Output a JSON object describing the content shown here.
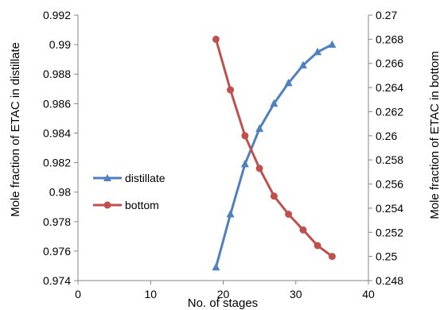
{
  "chart_data": {
    "type": "line",
    "xlabel": "No. of stages",
    "ylabel_left": "Mole fraction of ETAC in distillate",
    "ylabel_right": "Mole fraction of ETAC in bottom",
    "xlim": [
      0,
      40
    ],
    "ylim_left": [
      0.974,
      0.992
    ],
    "ylim_right": [
      0.248,
      0.27
    ],
    "x_ticks": [
      "0",
      "10",
      "20",
      "30",
      "40"
    ],
    "y_left_ticks": [
      "0.974",
      "0.976",
      "0.978",
      "0.98",
      "0.982",
      "0.984",
      "0.986",
      "0.988",
      "0.99",
      "0.992"
    ],
    "y_right_ticks": [
      "0.248",
      "0.25",
      "0.252",
      "0.254",
      "0.256",
      "0.258",
      "0.26",
      "0.262",
      "0.264",
      "0.266",
      "0.268",
      "0.27"
    ],
    "grid": false,
    "legend_position": "center-left",
    "series": [
      {
        "name": "distillate",
        "axis": "left",
        "color": "#4F81BD",
        "marker": "triangle",
        "x": [
          19,
          21,
          23,
          25,
          27,
          29,
          31,
          33,
          35
        ],
        "y": [
          0.9749,
          0.9785,
          0.9819,
          0.9843,
          0.986,
          0.9874,
          0.9886,
          0.9895,
          0.99
        ]
      },
      {
        "name": "bottom",
        "axis": "right",
        "color": "#C0504D",
        "marker": "circle",
        "x": [
          19,
          21,
          23,
          25,
          27,
          29,
          31,
          33,
          35
        ],
        "y": [
          0.268,
          0.2638,
          0.26,
          0.2573,
          0.255,
          0.2535,
          0.2522,
          0.2509,
          0.25
        ]
      }
    ]
  }
}
